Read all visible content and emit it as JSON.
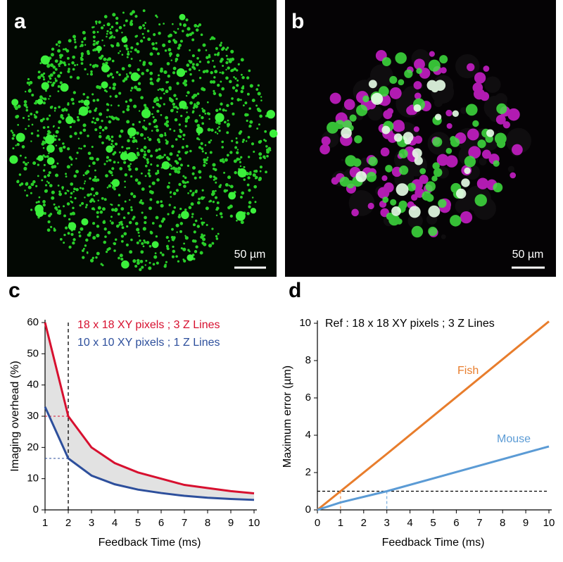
{
  "panels": {
    "a": {
      "letter": "a",
      "scale_bar": "50 µm"
    },
    "b": {
      "letter": "b",
      "scale_bar": "50 µm"
    },
    "c": {
      "letter": "c"
    },
    "d": {
      "letter": "d"
    }
  },
  "chart_data": [
    {
      "type": "line",
      "x_label": "Feedback Time (ms)",
      "y_label": "Imaging overhead (%)",
      "x": [
        1,
        2,
        3,
        4,
        5,
        6,
        7,
        8,
        9,
        10
      ],
      "series": [
        {
          "name": "18 x 18 XY pixels ; 3 Z Lines",
          "color": "#d7102f",
          "values": [
            60,
            30,
            20,
            15,
            12,
            10,
            8,
            7,
            6,
            5.3
          ]
        },
        {
          "name": "10 x 10 XY pixels ; 1 Z Lines",
          "color": "#2d4f9c",
          "values": [
            33,
            16.5,
            11,
            8.2,
            6.5,
            5.4,
            4.5,
            3.9,
            3.5,
            3.2
          ]
        }
      ],
      "shade_between": true,
      "shade_color": "#e2e2e2",
      "vline": 2,
      "xlim": [
        1,
        10
      ],
      "ylim": [
        0,
        60
      ],
      "xticks": [
        1,
        2,
        3,
        4,
        5,
        6,
        7,
        8,
        9,
        10
      ],
      "yticks": [
        0,
        10,
        20,
        30,
        40,
        50,
        60
      ]
    },
    {
      "type": "line",
      "x_label": "Feedback Time (ms)",
      "y_label": "Maximum error (µm)",
      "annotation": "Ref : 18 x 18 XY pixels ; 3 Z Lines",
      "hline": 1,
      "series": [
        {
          "name": "Fish",
          "color": "#e87d2c",
          "x": [
            0,
            1,
            3,
            10
          ],
          "values": [
            0,
            1,
            3,
            10.1
          ]
        },
        {
          "name": "Mouse",
          "color": "#5b9bd5",
          "x": [
            0,
            1,
            3,
            10
          ],
          "values": [
            0,
            0.4,
            1,
            3.4
          ]
        }
      ],
      "xlim": [
        0,
        10
      ],
      "ylim": [
        0,
        10
      ],
      "xticks": [
        0,
        1,
        2,
        3,
        4,
        5,
        6,
        7,
        8,
        9,
        10
      ],
      "yticks": [
        0,
        2,
        4,
        6,
        8,
        10
      ]
    }
  ]
}
